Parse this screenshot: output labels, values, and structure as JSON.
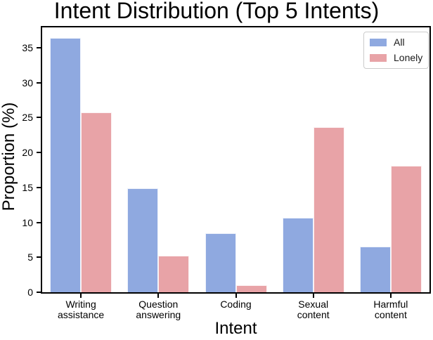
{
  "figure": {
    "title": "Intent Distribution (Top 5 Intents)",
    "xlabel": "Intent",
    "ylabel": "Proportion (%)"
  },
  "chart_data": {
    "type": "bar",
    "title": "Intent Distribution (Top 5 Intents)",
    "xlabel": "Intent",
    "ylabel": "Proportion (%)",
    "categories": [
      "Writing assistance",
      "Question answering",
      "Coding",
      "Sexual content",
      "Harmful content"
    ],
    "category_tick_lines": [
      [
        "Writing",
        "assistance"
      ],
      [
        "Question",
        "answering"
      ],
      [
        "Coding"
      ],
      [
        "Sexual",
        "content"
      ],
      [
        "Harmful",
        "content"
      ]
    ],
    "series": [
      {
        "name": "All",
        "color": "#8fa9e0",
        "values": [
          36.4,
          14.9,
          8.4,
          10.7,
          6.5
        ]
      },
      {
        "name": "Lonely",
        "color": "#e8a3a7",
        "values": [
          25.7,
          5.2,
          1.0,
          23.6,
          18.1
        ]
      }
    ],
    "yticks": [
      0,
      5,
      10,
      15,
      20,
      25,
      30,
      35
    ],
    "ylim": [
      0,
      37.9
    ],
    "grid": false,
    "legend_position": "upper right",
    "colors": {
      "spine": "#000000",
      "legend_border": "#cccccc",
      "background": "#ffffff"
    }
  }
}
